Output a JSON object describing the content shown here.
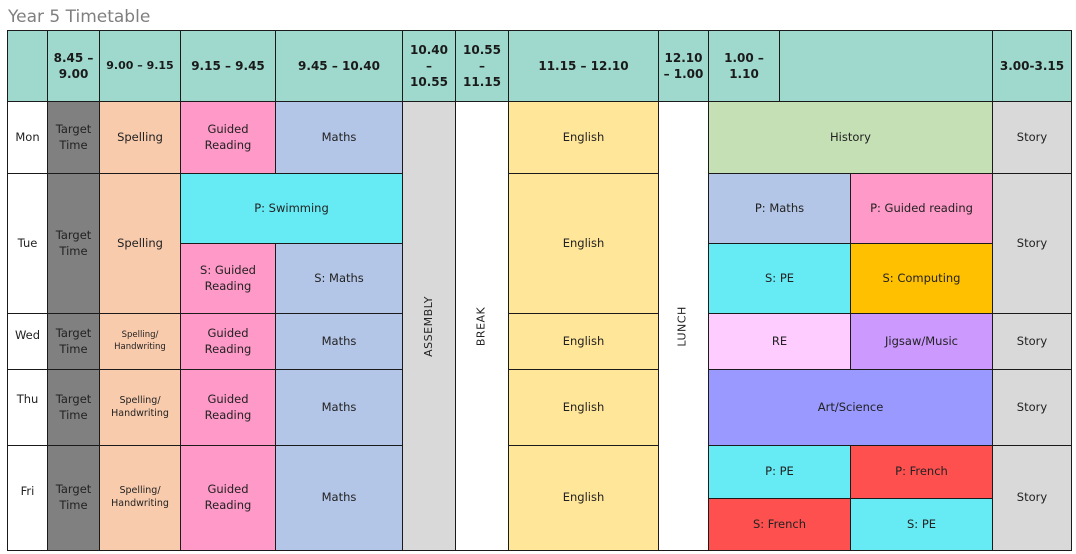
{
  "title": "Year 5 Timetable",
  "header": {
    "t1": "8.45 – 9.00",
    "t2": "9.00 – 9.15",
    "t3": "9.15 – 9.45",
    "t4": "9.45 – 10.40",
    "t5": "10.40 – 10.55",
    "t6": "10.55 – 11.15",
    "t7": "11.15 – 12.10",
    "t8": "12.10 – 1.00",
    "t9": "1.00 – 1.10",
    "t10": "",
    "t11": "3.00-3.15"
  },
  "days": {
    "mon": "Mon",
    "tue": "Tue",
    "wed": "Wed",
    "thu": "Thu",
    "fri": "Fri"
  },
  "common": {
    "target_time": "Target Time",
    "assembly": "ASSEMBLY",
    "break": "BREAK",
    "lunch": "LUNCH",
    "english": "English",
    "story": "Story"
  },
  "mon": {
    "spelling": "Spelling",
    "guided": "Guided Reading",
    "maths": "Maths",
    "history": "History"
  },
  "tue": {
    "spelling": "Spelling",
    "swimming": "P: Swimming",
    "s_guided": "S: Guided Reading",
    "s_maths": "S: Maths",
    "p_maths": "P: Maths",
    "p_guided": "P: Guided reading",
    "s_pe": "S: PE",
    "s_computing": "S: Computing"
  },
  "wed": {
    "spelling": "Spelling/ Handwriting",
    "guided": "Guided Reading",
    "maths": "Maths",
    "re": "RE",
    "jigsaw": "Jigsaw/Music"
  },
  "thu": {
    "spelling": "Spelling/ Handwriting",
    "guided": "Guided Reading",
    "maths": "Maths",
    "art": "Art/Science"
  },
  "fri": {
    "spelling": "Spelling/ Handwriting",
    "guided": "Guided Reading",
    "maths": "Maths",
    "p_pe": "P: PE",
    "p_french": "P: French",
    "s_french": "S: French",
    "s_pe": "S: PE"
  },
  "colors": {
    "header": "#9fd9cd",
    "target": "#808080",
    "spelling": "#f8cbad",
    "guided": "#ff99c8",
    "maths": "#b4c6e7",
    "assembly": "#d9d9d9",
    "english": "#ffe699",
    "history": "#c5e0b4",
    "story": "#d9d9d9",
    "pe": "#66eaf4",
    "computing": "#ffc000",
    "re": "#ffccff",
    "jigsaw": "#cc99ff",
    "art": "#9999ff",
    "french": "#ff5050"
  }
}
